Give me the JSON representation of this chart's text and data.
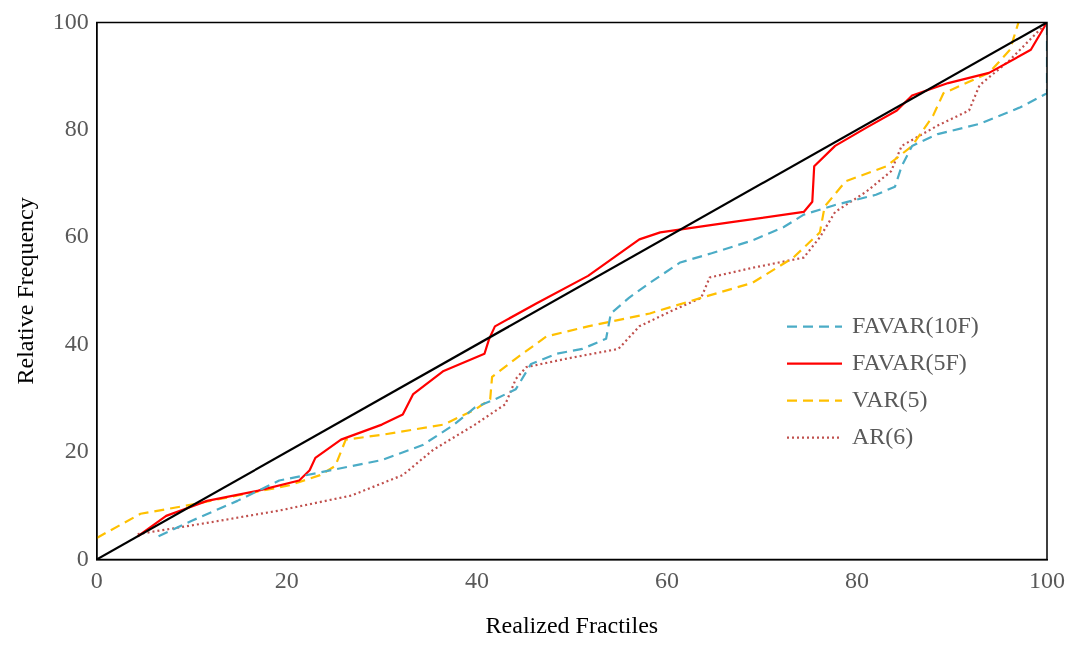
{
  "chart_data": {
    "type": "line",
    "xlabel": "Realized Fractiles",
    "ylabel": "Relative Frequency",
    "xlim": [
      0,
      100
    ],
    "ylim": [
      0,
      100
    ],
    "xticks": [
      0,
      20,
      40,
      60,
      80,
      100
    ],
    "yticks": [
      0,
      20,
      40,
      60,
      80,
      100
    ],
    "grid": false,
    "legend": "right",
    "marker": "none",
    "series": [
      {
        "color": "#000000",
        "line_style": "solid",
        "x": [
          0,
          100
        ],
        "values": [
          0,
          100
        ]
      },
      {
        "name": "FAVAR(10F)",
        "color": "#4bacc6",
        "line_style": "dashed",
        "x": [
          6.5,
          10,
          14.8,
          19.2,
          23.5,
          30,
          34.3,
          37.6,
          39.8,
          41.9,
          44.1,
          45.7,
          48.4,
          51.1,
          53.6,
          54.1,
          56,
          58.2,
          61.4,
          64.7,
          69,
          72.3,
          74.4,
          77.7,
          82,
          84,
          84.7,
          85.8,
          88.5,
          92.9,
          97.2,
          100,
          100
        ],
        "values": [
          4.3,
          7.2,
          10.9,
          14.7,
          16.2,
          18.5,
          21.3,
          25.1,
          28.3,
          29.8,
          31.7,
          36.4,
          38.3,
          39.2,
          41.1,
          45.8,
          48.7,
          51.5,
          55.3,
          57,
          59.4,
          61.9,
          64.2,
          66,
          67.9,
          69.4,
          73.2,
          77,
          79.2,
          81.1,
          84.2,
          86.8,
          100
        ]
      },
      {
        "name": "FAVAR(5F)",
        "color": "#ff0000",
        "line_style": "solid",
        "x": [
          4.3,
          7.3,
          11.6,
          17,
          21.3,
          22.4,
          23,
          25.7,
          30,
          32.2,
          33.3,
          36.5,
          40.8,
          41.3,
          41.9,
          46.3,
          51.7,
          54.4,
          57.1,
          59.3,
          66.8,
          74.4,
          75.3,
          75.5,
          77.7,
          81,
          84.2,
          85.8,
          89.6,
          93.9,
          98.3,
          100
        ],
        "values": [
          4.3,
          8.1,
          10.9,
          12.8,
          14.7,
          16.6,
          18.9,
          22.3,
          25.1,
          27,
          30.8,
          35.1,
          38.3,
          41.1,
          43.4,
          47.7,
          52.8,
          56.2,
          59.6,
          60.9,
          62.8,
          64.7,
          66.6,
          73.2,
          77,
          80.4,
          83.6,
          86.4,
          88.7,
          90.6,
          94.9,
          100
        ]
      },
      {
        "name": "VAR(5)",
        "color": "#ffc000",
        "line_style": "dashed",
        "x": [
          0,
          4.6,
          9.4,
          14.8,
          20.3,
          23.5,
          25.1,
          26.2,
          30,
          36.5,
          39.8,
          41.4,
          41.6,
          44.1,
          47.3,
          51.7,
          58.2,
          63.6,
          69,
          73.3,
          76.1,
          76.6,
          78.8,
          83.1,
          85.8,
          88,
          89.1,
          93.9,
          96.1,
          97
        ],
        "values": [
          4,
          8.5,
          10,
          11.9,
          13.8,
          15.7,
          17.4,
          22.3,
          23.2,
          25.1,
          27.9,
          29.8,
          34,
          37.4,
          41.5,
          43.4,
          45.8,
          48.7,
          51.5,
          56.2,
          60.9,
          65.7,
          70.4,
          73.2,
          77,
          82.6,
          86.8,
          90.6,
          94.9,
          100
        ]
      },
      {
        "name": "AR(6)",
        "color": "#c0504d",
        "line_style": "dotted",
        "x": [
          4.3,
          11.6,
          19.2,
          26.8,
          32.2,
          35.4,
          39.8,
          43,
          44.1,
          45.2,
          49.5,
          54.9,
          57.1,
          60.4,
          63.6,
          64.5,
          69,
          74.4,
          76.1,
          77.7,
          81,
          83.6,
          84.7,
          88.5,
          91.8,
          92.9,
          96.1,
          100
        ],
        "values": [
          4.7,
          6.8,
          9.1,
          11.9,
          15.7,
          20.4,
          25.1,
          28.9,
          33.6,
          35.8,
          37.4,
          39.2,
          43.4,
          46.2,
          48.7,
          52.5,
          54.3,
          56.2,
          60,
          64.7,
          68.5,
          72.3,
          77,
          80.8,
          83.6,
          88.3,
          93,
          100
        ]
      }
    ]
  }
}
